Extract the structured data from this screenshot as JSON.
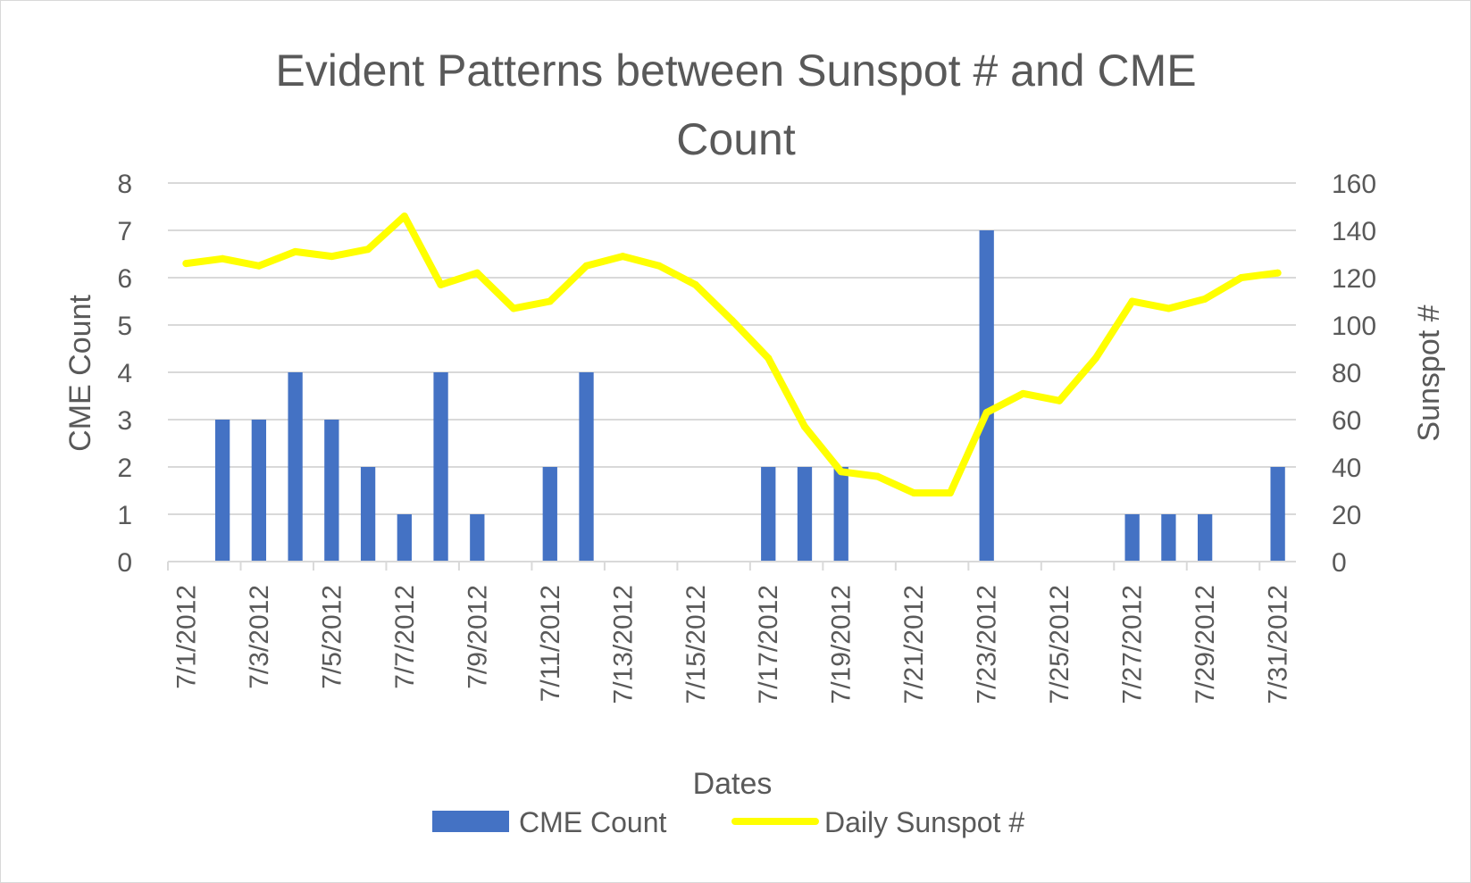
{
  "chart_data": {
    "type": "bar",
    "title_lines": [
      "Evident Patterns between Sunspot # and CME",
      "Count"
    ],
    "xlabel": "Dates",
    "ylabel_left": "CME Count",
    "ylabel_right": "Sunspot #",
    "ylim_left": [
      0,
      8
    ],
    "ylim_right": [
      0,
      160
    ],
    "yticks_left": [
      "0",
      "1",
      "2",
      "3",
      "4",
      "5",
      "6",
      "7",
      "8"
    ],
    "yticks_right": [
      "0",
      "20",
      "40",
      "60",
      "80",
      "100",
      "120",
      "140",
      "160"
    ],
    "grid": true,
    "legend_position": "bottom",
    "categories": [
      "7/1/2012",
      "7/2/2012",
      "7/3/2012",
      "7/4/2012",
      "7/5/2012",
      "7/6/2012",
      "7/7/2012",
      "7/8/2012",
      "7/9/2012",
      "7/10/2012",
      "7/11/2012",
      "7/12/2012",
      "7/13/2012",
      "7/14/2012",
      "7/15/2012",
      "7/16/2012",
      "7/17/2012",
      "7/18/2012",
      "7/19/2012",
      "7/20/2012",
      "7/21/2012",
      "7/22/2012",
      "7/23/2012",
      "7/24/2012",
      "7/25/2012",
      "7/26/2012",
      "7/27/2012",
      "7/28/2012",
      "7/29/2012",
      "7/30/2012",
      "7/31/2012"
    ],
    "x_tick_labels": [
      "7/1/2012",
      "7/3/2012",
      "7/5/2012",
      "7/7/2012",
      "7/9/2012",
      "7/11/2012",
      "7/13/2012",
      "7/15/2012",
      "7/17/2012",
      "7/19/2012",
      "7/21/2012",
      "7/23/2012",
      "7/25/2012",
      "7/27/2012",
      "7/29/2012",
      "7/31/2012"
    ],
    "series": [
      {
        "name": "CME Count",
        "type": "bar",
        "axis": "left",
        "color": "#4472c4",
        "values": [
          0,
          3,
          3,
          4,
          3,
          2,
          1,
          4,
          1,
          0,
          2,
          4,
          0,
          0,
          0,
          0,
          2,
          2,
          2,
          0,
          0,
          0,
          7,
          0,
          0,
          0,
          1,
          1,
          1,
          0,
          2
        ]
      },
      {
        "name": "Daily Sunspot #",
        "type": "line",
        "axis": "right",
        "color": "#ffff00",
        "values": [
          126,
          128,
          125,
          131,
          129,
          132,
          146,
          117,
          122,
          107,
          110,
          125,
          129,
          125,
          117,
          102,
          86,
          57,
          38,
          36,
          29,
          29,
          63,
          71,
          68,
          86,
          110,
          107,
          111,
          120,
          122
        ]
      }
    ]
  }
}
